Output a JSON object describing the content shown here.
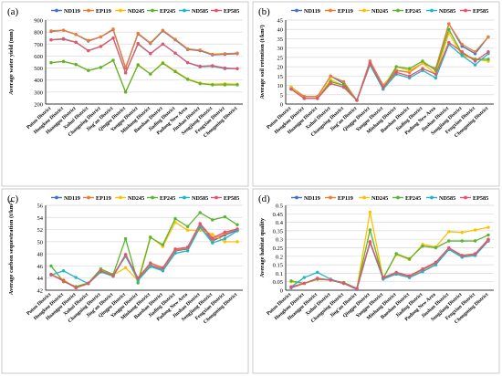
{
  "figure": {
    "districts": [
      "Putuo District",
      "Hongkou District",
      "Huangpu District",
      "Xuhui District",
      "Changning District",
      "Jing'an District",
      "Qingpu District",
      "Yangpu District",
      "Minhang District",
      "Baoshan District",
      "Jiading District",
      "Pudong New Area",
      "Jinshan District",
      "Songjiang District",
      "Fengxian District",
      "Chongming District"
    ],
    "legend_names": [
      "ND119",
      "EP119",
      "ND245",
      "EP245",
      "ND585",
      "EP585"
    ],
    "colors": {
      "ND119": "#4472c4",
      "EP119": "#ed7d31",
      "ND245": "#ffc000",
      "EP245": "#5ab432",
      "ND585": "#1fb5c9",
      "EP585": "#e8536b"
    }
  },
  "chart_data": [
    {
      "type": "line",
      "panel_label": "(a)",
      "ylabel": "Average water yield  (mm)",
      "ylim": [
        200,
        900
      ],
      "yticks": [
        200,
        300,
        400,
        500,
        600,
        700,
        800,
        900
      ],
      "categories": [
        "Putuo District",
        "Hongkou District",
        "Huangpu District",
        "Xuhui District",
        "Changning District",
        "Jing'an District",
        "Qingpu District",
        "Yangpu District",
        "Minhang District",
        "Baoshan District",
        "Jiading District",
        "Pudong New Area",
        "Jinshan District",
        "Songjiang District",
        "Fengxian District",
        "Chongming District"
      ],
      "series": [
        {
          "name": "ND119",
          "values": [
            805,
            815,
            780,
            725,
            760,
            820,
            500,
            785,
            705,
            810,
            735,
            655,
            645,
            610,
            615,
            620
          ]
        },
        {
          "name": "EP119",
          "values": [
            810,
            815,
            780,
            730,
            760,
            825,
            505,
            790,
            710,
            815,
            740,
            660,
            650,
            615,
            620,
            625
          ]
        },
        {
          "name": "ND245",
          "values": [
            545,
            555,
            530,
            480,
            505,
            565,
            300,
            530,
            450,
            545,
            475,
            410,
            375,
            365,
            370,
            365
          ]
        },
        {
          "name": "EP245",
          "values": [
            545,
            555,
            530,
            480,
            505,
            565,
            300,
            525,
            450,
            540,
            470,
            405,
            370,
            360,
            360,
            360
          ]
        },
        {
          "name": "ND585",
          "values": [
            735,
            745,
            715,
            645,
            680,
            750,
            460,
            700,
            620,
            700,
            625,
            545,
            510,
            515,
            495,
            495
          ]
        },
        {
          "name": "EP585",
          "values": [
            735,
            740,
            715,
            645,
            680,
            750,
            460,
            705,
            620,
            700,
            625,
            545,
            515,
            520,
            500,
            495
          ]
        }
      ]
    },
    {
      "type": "line",
      "panel_label": "(b)",
      "ylabel": "Average soil retention (t/km²)",
      "ylim": [
        0,
        45
      ],
      "yticks": [
        0,
        5,
        10,
        15,
        20,
        25,
        30,
        35,
        40,
        45
      ],
      "categories": [
        "Putuo District",
        "Hongkou District",
        "Huangpu District",
        "Xuhui District",
        "Changning District",
        "Jing'an District",
        "Qingpu District",
        "Yangpu District",
        "Minhang District",
        "Baoshan District",
        "Jiading District",
        "Pudong New Area",
        "Jinshan District",
        "Songjiang District",
        "Fengxian District",
        "Chongming District"
      ],
      "series": [
        {
          "name": "ND119",
          "values": [
            9,
            4,
            4,
            15,
            11,
            2,
            23,
            10,
            18,
            17,
            22,
            19,
            43,
            31,
            27,
            36
          ]
        },
        {
          "name": "EP119",
          "values": [
            9,
            4,
            4,
            15,
            12,
            2,
            23,
            10,
            18,
            17,
            22,
            19,
            43,
            32,
            28,
            36
          ]
        },
        {
          "name": "ND245",
          "values": [
            9,
            3,
            3,
            13,
            10,
            2,
            22,
            9,
            20,
            18,
            22,
            16,
            38,
            26,
            24,
            23
          ]
        },
        {
          "name": "EP245",
          "values": [
            8,
            3,
            3,
            12,
            10,
            2,
            21,
            8,
            20,
            19,
            23,
            18,
            40,
            27,
            24,
            24
          ]
        },
        {
          "name": "ND585",
          "values": [
            8,
            3,
            3,
            11,
            9,
            2,
            21,
            8,
            16,
            14,
            18,
            14,
            32,
            26,
            21,
            27
          ]
        },
        {
          "name": "EP585",
          "values": [
            8,
            3,
            3,
            11,
            9,
            2,
            22,
            9,
            17,
            15,
            19,
            16,
            33,
            28,
            23,
            28
          ]
        }
      ]
    },
    {
      "type": "line",
      "panel_label": "(c)",
      "ylabel": "Average carbon sequestration (t/km²)",
      "ylim": [
        42,
        56
      ],
      "yticks": [
        42,
        44,
        46,
        48,
        50,
        52,
        54,
        56
      ],
      "categories": [
        "Putuo District",
        "Hongkou District",
        "Huangpu District",
        "Xuhui District",
        "Changning District",
        "Jing'an District",
        "Qingpu District",
        "Yangpu District",
        "Minhang District",
        "Baoshan District",
        "Jiading District",
        "Pudong New Area",
        "Jinshan District",
        "Songjiang District",
        "Fengxian District",
        "Chongming District"
      ],
      "series": [
        {
          "name": "ND119",
          "values": [
            44.6,
            43.5,
            42.4,
            43.1,
            45.1,
            44.5,
            47.6,
            43.8,
            46.1,
            45.4,
            48.5,
            48.8,
            52.8,
            50.1,
            51.1,
            51.9
          ]
        },
        {
          "name": "EP119",
          "values": [
            44.6,
            43.6,
            42.4,
            43.1,
            45.3,
            44.4,
            47.8,
            43.9,
            46.2,
            45.5,
            48.6,
            48.9,
            52.9,
            50.3,
            51.3,
            52.1
          ]
        },
        {
          "name": "ND245",
          "values": [
            44.5,
            43.7,
            42.4,
            43.2,
            45.4,
            44.5,
            45.7,
            43.6,
            50.8,
            49.2,
            53.2,
            51.9,
            51.9,
            51.2,
            50.0,
            50.0
          ]
        },
        {
          "name": "EP245",
          "values": [
            46.0,
            43.4,
            42.6,
            43.2,
            45.5,
            44.6,
            50.5,
            43.2,
            50.7,
            49.5,
            53.8,
            52.5,
            54.8,
            53.6,
            54.1,
            52.8
          ]
        },
        {
          "name": "ND585",
          "values": [
            44.5,
            45.2,
            44.1,
            43.1,
            45.0,
            44.3,
            47.7,
            43.6,
            45.9,
            45.2,
            48.1,
            48.5,
            52.4,
            49.8,
            50.5,
            51.8
          ]
        },
        {
          "name": "EP585",
          "values": [
            44.6,
            43.6,
            42.4,
            43.1,
            45.2,
            44.4,
            47.9,
            44.0,
            46.5,
            45.7,
            48.8,
            49.1,
            53.0,
            50.6,
            51.6,
            52.1
          ]
        }
      ]
    },
    {
      "type": "line",
      "panel_label": "(d)",
      "ylabel": "Average habitat quality",
      "ylim": [
        0,
        0.5
      ],
      "yticks": [
        0,
        0.05,
        0.1,
        0.15,
        0.2,
        0.25,
        0.3,
        0.35,
        0.4,
        0.45,
        0.5
      ],
      "categories": [
        "Putuo District",
        "Hongkou District",
        "Huangpu District",
        "Xuhui District",
        "Changning District",
        "Jing'an District",
        "Qingpu District",
        "Yangpu District",
        "Minhang District",
        "Baoshan District",
        "Jiading District",
        "Pudong New Area",
        "Jinshan District",
        "Songjiang District",
        "Fengxian District",
        "Chongming District"
      ],
      "series": [
        {
          "name": "ND119",
          "values": [
            0.015,
            0.04,
            0.065,
            0.06,
            0.04,
            0.005,
            0.28,
            0.07,
            0.095,
            0.075,
            0.11,
            0.15,
            0.24,
            0.195,
            0.205,
            0.29
          ]
        },
        {
          "name": "EP119",
          "values": [
            0.02,
            0.04,
            0.07,
            0.06,
            0.045,
            0.01,
            0.285,
            0.075,
            0.1,
            0.08,
            0.12,
            0.16,
            0.245,
            0.2,
            0.21,
            0.295
          ]
        },
        {
          "name": "ND245",
          "values": [
            0.05,
            0.04,
            0.065,
            0.06,
            0.045,
            0.01,
            0.46,
            0.07,
            0.21,
            0.18,
            0.27,
            0.255,
            0.345,
            0.34,
            0.355,
            0.37
          ]
        },
        {
          "name": "EP245",
          "values": [
            0.055,
            0.04,
            0.065,
            0.06,
            0.045,
            0.01,
            0.355,
            0.07,
            0.215,
            0.185,
            0.26,
            0.25,
            0.29,
            0.29,
            0.29,
            0.325
          ]
        },
        {
          "name": "ND585",
          "values": [
            0.02,
            0.075,
            0.105,
            0.065,
            0.04,
            0.01,
            0.285,
            0.065,
            0.095,
            0.075,
            0.11,
            0.15,
            0.24,
            0.195,
            0.205,
            0.3
          ]
        },
        {
          "name": "EP585",
          "values": [
            0.02,
            0.04,
            0.07,
            0.06,
            0.04,
            0.01,
            0.285,
            0.075,
            0.105,
            0.085,
            0.125,
            0.165,
            0.25,
            0.205,
            0.215,
            0.3
          ]
        }
      ]
    }
  ]
}
